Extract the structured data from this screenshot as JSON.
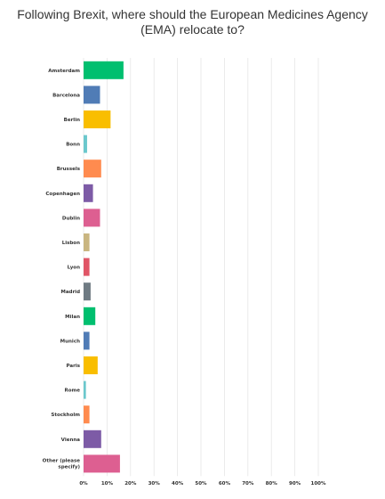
{
  "chart_data": {
    "type": "bar",
    "orientation": "horizontal",
    "title": "Following Brexit, where should the European Medicines Agency (EMA) relocate to?",
    "categories": [
      "Amsterdam",
      "Barcelona",
      "Berlin",
      "Bonn",
      "Brussels",
      "Copenhagen",
      "Dublin",
      "Lisbon",
      "Lyon",
      "Madrid",
      "Milan",
      "Munich",
      "Paris",
      "Rome",
      "Stockholm",
      "Vienna",
      "Other (please specify)"
    ],
    "values": [
      17,
      7,
      11.5,
      1.5,
      7.5,
      4,
      7,
      2.5,
      2.5,
      3,
      5,
      2.5,
      6,
      1,
      2.5,
      7.5,
      15.5
    ],
    "colors": [
      "#00bf6f",
      "#507cb6",
      "#f9be00",
      "#6bc8cd",
      "#ff8b4f",
      "#7d5ba6",
      "#dd5f91",
      "#c9b580",
      "#e05566",
      "#6f7b83",
      "#00bf6f",
      "#507cb6",
      "#f9be00",
      "#6bc8cd",
      "#ff8b4f",
      "#7d5ba6",
      "#dd5f91"
    ],
    "xlim": [
      0,
      100
    ],
    "xticks": [
      "0%",
      "10%",
      "20%",
      "30%",
      "40%",
      "50%",
      "60%",
      "70%",
      "80%",
      "90%",
      "100%"
    ],
    "grid": true
  }
}
